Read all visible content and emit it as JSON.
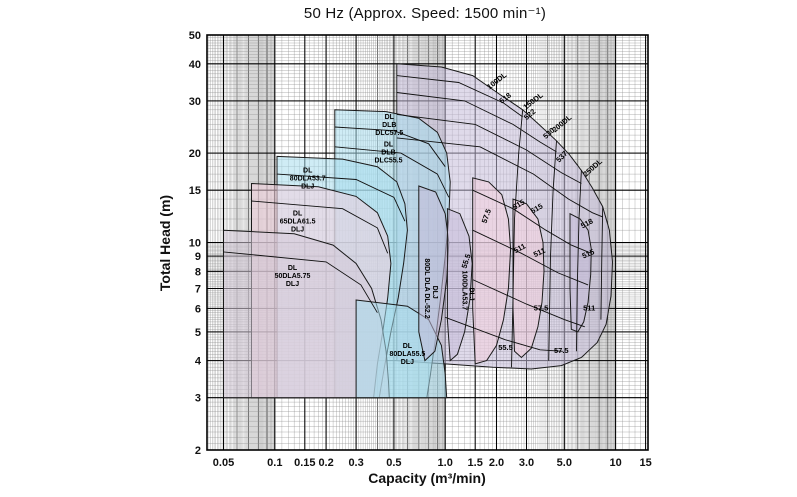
{
  "chart_data": {
    "type": "area",
    "title": "50 Hz (Approx. Speed: 1500 min⁻¹)",
    "xlabel": "Capacity (m³/min)",
    "ylabel": "Total Head (m)",
    "x_scale": "log",
    "y_scale": "log",
    "xlim": [
      0.04,
      15.5
    ],
    "ylim": [
      2,
      50
    ],
    "grid": "log graph paper, minor+major, both axes",
    "x_ticks": [
      {
        "v": 0.05,
        "label": "0.05"
      },
      {
        "v": 0.1,
        "label": "0.1"
      },
      {
        "v": 0.15,
        "label": "0.15"
      },
      {
        "v": 0.2,
        "label": "0.2"
      },
      {
        "v": 0.3,
        "label": "0.3"
      },
      {
        "v": 0.5,
        "label": "0.5"
      },
      {
        "v": 1.0,
        "label": "1.0"
      },
      {
        "v": 1.5,
        "label": "1.5"
      },
      {
        "v": 2.0,
        "label": "2.0"
      },
      {
        "v": 3.0,
        "label": "3.0"
      },
      {
        "v": 5.0,
        "label": "5.0"
      },
      {
        "v": 10,
        "label": "10"
      },
      {
        "v": 15,
        "label": "15"
      }
    ],
    "y_ticks": [
      {
        "v": 2,
        "label": "2"
      },
      {
        "v": 3,
        "label": "3"
      },
      {
        "v": 4,
        "label": "4"
      },
      {
        "v": 5,
        "label": "5"
      },
      {
        "v": 6,
        "label": "6"
      },
      {
        "v": 7,
        "label": "7"
      },
      {
        "v": 8,
        "label": "8"
      },
      {
        "v": 9,
        "label": "9"
      },
      {
        "v": 10,
        "label": "10"
      },
      {
        "v": 15,
        "label": "15"
      },
      {
        "v": 20,
        "label": "20"
      },
      {
        "v": 30,
        "label": "30"
      },
      {
        "v": 40,
        "label": "40"
      },
      {
        "v": 50,
        "label": "50"
      }
    ],
    "colors": {
      "lavender": "#c5bcd8",
      "cyan": "#a8dcec",
      "pink": "#f2cfdc",
      "graylav": "#d6cbd8"
    },
    "models_visible": [
      "100DL",
      "150DL",
      "200DL",
      "250DL",
      "DLC57.5",
      "DLC55.5",
      "80DLA53.7",
      "65DLA61.5",
      "50DLA5.75",
      "80DLA55.5",
      "80DL DLA DL-52.2",
      "100DLA53.7"
    ],
    "regions": [
      {
        "name": "dl-series-large",
        "color": "lavender",
        "points": [
          [
            0.52,
            40
          ],
          [
            0.95,
            39
          ],
          [
            1.45,
            36.5
          ],
          [
            2.1,
            31.5
          ],
          [
            2.85,
            28
          ],
          [
            3.55,
            25
          ],
          [
            4.5,
            22
          ],
          [
            5.35,
            19.8
          ],
          [
            6.3,
            17.5
          ],
          [
            7.3,
            15.3
          ],
          [
            8.4,
            13.2
          ],
          [
            9.2,
            11
          ],
          [
            9.6,
            8.6
          ],
          [
            9.4,
            6.6
          ],
          [
            8.8,
            5.3
          ],
          [
            7.8,
            4.6
          ],
          [
            6.3,
            4.1
          ],
          [
            4.8,
            3.85
          ],
          [
            3.2,
            3.75
          ],
          [
            1.9,
            3.8
          ],
          [
            1.0,
            3.9
          ],
          [
            0.52,
            4.0
          ]
        ]
      },
      {
        "name": "dlc-tall",
        "color": "cyan",
        "points": [
          [
            0.225,
            28
          ],
          [
            0.45,
            27.6
          ],
          [
            0.7,
            26.2
          ],
          [
            0.9,
            23.5
          ],
          [
            1.02,
            20
          ],
          [
            1.07,
            16
          ],
          [
            1.05,
            12
          ],
          [
            1.0,
            9
          ],
          [
            0.94,
            6.5
          ],
          [
            0.88,
            4.8
          ],
          [
            0.82,
            3.6
          ],
          [
            0.78,
            3.0
          ],
          [
            0.225,
            3.0
          ]
        ]
      },
      {
        "name": "dla-80-3-7kw",
        "color": "cyan",
        "points": [
          [
            0.103,
            19.5
          ],
          [
            0.25,
            19.1
          ],
          [
            0.4,
            18
          ],
          [
            0.52,
            16
          ],
          [
            0.58,
            13.5
          ],
          [
            0.6,
            11
          ],
          [
            0.57,
            8.5
          ],
          [
            0.53,
            6.5
          ],
          [
            0.48,
            5.0
          ],
          [
            0.44,
            3.8
          ],
          [
            0.41,
            3.0
          ],
          [
            0.103,
            3.0
          ]
        ]
      },
      {
        "name": "dla-65-1-5kw",
        "color": "pink",
        "points": [
          [
            0.073,
            15.8
          ],
          [
            0.18,
            15.4
          ],
          [
            0.3,
            14.3
          ],
          [
            0.4,
            12.6
          ],
          [
            0.46,
            10.5
          ],
          [
            0.48,
            8.5
          ],
          [
            0.46,
            6.5
          ],
          [
            0.43,
            5.0
          ],
          [
            0.4,
            3.9
          ],
          [
            0.38,
            3.0
          ],
          [
            0.073,
            3.0
          ]
        ]
      },
      {
        "name": "dla-50-0-75kw",
        "color": "graylav",
        "points": [
          [
            0.05,
            11
          ],
          [
            0.13,
            10.7
          ],
          [
            0.22,
            9.8
          ],
          [
            0.3,
            8.5
          ],
          [
            0.37,
            7.0
          ],
          [
            0.42,
            5.5
          ],
          [
            0.45,
            4.3
          ],
          [
            0.465,
            3.4
          ],
          [
            0.47,
            3.0
          ],
          [
            0.05,
            3.0
          ]
        ]
      },
      {
        "name": "dla-80-5-5kw-bottom",
        "color": "cyan",
        "points": [
          [
            0.3,
            6.4
          ],
          [
            0.6,
            6.1
          ],
          [
            0.8,
            5.5
          ],
          [
            0.95,
            4.5
          ],
          [
            1.0,
            3.6
          ],
          [
            1.02,
            3.0
          ],
          [
            0.3,
            3.0
          ]
        ]
      },
      {
        "name": "dl-80-narrow",
        "color": "lavender",
        "points": [
          [
            0.7,
            15.5
          ],
          [
            0.88,
            14.8
          ],
          [
            1.0,
            12.5
          ],
          [
            1.05,
            10
          ],
          [
            1.02,
            7.5
          ],
          [
            0.95,
            5.5
          ],
          [
            0.87,
            4.3
          ],
          [
            0.76,
            4.0
          ],
          [
            0.7,
            5.0
          ]
        ]
      },
      {
        "name": "dla-100-narrow",
        "color": "lavender",
        "points": [
          [
            1.03,
            13
          ],
          [
            1.22,
            12.5
          ],
          [
            1.38,
            10.5
          ],
          [
            1.44,
            8.5
          ],
          [
            1.4,
            6.5
          ],
          [
            1.3,
            5.0
          ],
          [
            1.18,
            4.2
          ],
          [
            1.07,
            4.0
          ],
          [
            1.03,
            5.5
          ]
        ]
      },
      {
        "name": "mid-pink",
        "color": "pink",
        "points": [
          [
            1.45,
            16.5
          ],
          [
            1.8,
            16
          ],
          [
            2.15,
            14.5
          ],
          [
            2.35,
            12
          ],
          [
            2.42,
            9.5
          ],
          [
            2.35,
            7.0
          ],
          [
            2.2,
            5.5
          ],
          [
            2.0,
            4.5
          ],
          [
            1.75,
            4.0
          ],
          [
            1.5,
            3.9
          ],
          [
            1.45,
            6.0
          ]
        ]
      },
      {
        "name": "right-pink",
        "color": "pink",
        "points": [
          [
            2.5,
            14
          ],
          [
            3.0,
            13.5
          ],
          [
            3.5,
            12
          ],
          [
            3.75,
            10
          ],
          [
            3.8,
            8.0
          ],
          [
            3.7,
            6.3
          ],
          [
            3.5,
            5.2
          ],
          [
            3.2,
            4.4
          ],
          [
            2.8,
            4.1
          ],
          [
            2.55,
            4.3
          ],
          [
            2.5,
            6.0
          ]
        ]
      },
      {
        "name": "right-lavender-small",
        "color": "lavender",
        "points": [
          [
            5.4,
            12.5
          ],
          [
            6.2,
            12
          ],
          [
            6.9,
            11
          ],
          [
            7.2,
            9.5
          ],
          [
            7.15,
            7.8
          ],
          [
            6.9,
            6.3
          ],
          [
            6.5,
            5.4
          ],
          [
            6.0,
            5.0
          ],
          [
            5.5,
            5.1
          ],
          [
            5.4,
            7.0
          ]
        ]
      }
    ],
    "curves": [
      {
        "name": "band-1",
        "points": [
          [
            0.52,
            36.5
          ],
          [
            1.2,
            34.6
          ],
          [
            2.2,
            29.5
          ],
          [
            2.85,
            26.5
          ]
        ]
      },
      {
        "name": "band-2",
        "points": [
          [
            0.52,
            32
          ],
          [
            1.3,
            30
          ],
          [
            2.5,
            25
          ],
          [
            3.6,
            21.8
          ],
          [
            4.5,
            20.2
          ]
        ]
      },
      {
        "name": "band-3",
        "points": [
          [
            0.52,
            27
          ],
          [
            1.5,
            25
          ],
          [
            3.0,
            20.5
          ],
          [
            4.8,
            17.2
          ],
          [
            6.3,
            15.8
          ]
        ]
      },
      {
        "name": "band-4",
        "points": [
          [
            0.52,
            22.5
          ],
          [
            1.6,
            21
          ],
          [
            3.3,
            17
          ],
          [
            5.3,
            14
          ],
          [
            7.3,
            12.6
          ],
          [
            8.4,
            12.2
          ]
        ]
      },
      {
        "name": "band-515",
        "points": [
          [
            1.45,
            15
          ],
          [
            2.5,
            13
          ],
          [
            3.9,
            11
          ],
          [
            5.5,
            9.8
          ],
          [
            7.2,
            9.2
          ]
        ]
      },
      {
        "name": "band-511",
        "points": [
          [
            1.45,
            11
          ],
          [
            2.8,
            9.2
          ],
          [
            4.6,
            7.9
          ],
          [
            6.9,
            7.2
          ]
        ]
      },
      {
        "name": "band-57-5",
        "points": [
          [
            1.45,
            7.5
          ],
          [
            3.0,
            6.2
          ],
          [
            5.0,
            5.5
          ],
          [
            6.6,
            5.2
          ]
        ]
      },
      {
        "name": "band-55-5",
        "points": [
          [
            1.0,
            5.6
          ],
          [
            2.26,
            4.7
          ],
          [
            3.6,
            4.35
          ],
          [
            4.9,
            4.3
          ]
        ]
      },
      {
        "name": "divider-100dl",
        "points": [
          [
            2.85,
            28
          ],
          [
            2.7,
            20
          ],
          [
            2.55,
            12
          ],
          [
            2.5,
            6.5
          ],
          [
            2.45,
            3.8
          ]
        ]
      },
      {
        "name": "divider-150dl",
        "points": [
          [
            4.5,
            22
          ],
          [
            4.3,
            15
          ],
          [
            4.15,
            9
          ],
          [
            4.05,
            4.0
          ]
        ]
      },
      {
        "name": "divider-200dl",
        "points": [
          [
            6.3,
            17.5
          ],
          [
            6.1,
            12
          ],
          [
            5.95,
            7
          ],
          [
            5.9,
            4.3
          ]
        ]
      },
      {
        "name": "divider-250dl",
        "points": [
          [
            8.4,
            13.2
          ],
          [
            8.3,
            9
          ],
          [
            8.2,
            5.5
          ]
        ]
      },
      {
        "name": "dlc-inner-1",
        "points": [
          [
            0.225,
            24.5
          ],
          [
            0.5,
            23.8
          ],
          [
            0.8,
            21.5
          ],
          [
            1.0,
            18
          ]
        ]
      },
      {
        "name": "dlc-inner-2",
        "points": [
          [
            0.225,
            21
          ],
          [
            0.55,
            20
          ],
          [
            0.9,
            17
          ],
          [
            1.05,
            14.2
          ]
        ]
      },
      {
        "name": "dla80-inner",
        "points": [
          [
            0.103,
            17
          ],
          [
            0.3,
            16.3
          ],
          [
            0.5,
            14.2
          ],
          [
            0.58,
            11.8
          ]
        ]
      },
      {
        "name": "dla65-inner",
        "points": [
          [
            0.073,
            13.8
          ],
          [
            0.25,
            13
          ],
          [
            0.4,
            11.2
          ],
          [
            0.46,
            9.2
          ]
        ]
      },
      {
        "name": "dla50-inner",
        "points": [
          [
            0.05,
            9.3
          ],
          [
            0.2,
            8.6
          ],
          [
            0.32,
            7.2
          ],
          [
            0.4,
            5.8
          ]
        ]
      }
    ],
    "curve_labels": [
      {
        "t": "100DL",
        "x": 2.05,
        "y": 34.5,
        "rot": -38
      },
      {
        "t": "150DL",
        "x": 3.35,
        "y": 29.5,
        "rot": -38
      },
      {
        "t": "200DL",
        "x": 4.95,
        "y": 24.8,
        "rot": -40
      },
      {
        "t": "250DL",
        "x": 7.5,
        "y": 17.6,
        "rot": -42
      },
      {
        "t": "518",
        "x": 2.3,
        "y": 30.2,
        "rot": -38
      },
      {
        "t": "522",
        "x": 3.2,
        "y": 26.6,
        "rot": -40
      },
      {
        "t": "530",
        "x": 4.15,
        "y": 23.0,
        "rot": -42
      },
      {
        "t": "537",
        "x": 4.95,
        "y": 19.2,
        "rot": -45
      },
      {
        "t": "57.5",
        "x": 1.8,
        "y": 12.2,
        "rot": -70
      },
      {
        "t": "55.5",
        "x": 1.37,
        "y": 8.6,
        "rot": -72
      },
      {
        "t": "515",
        "x": 2.75,
        "y": 13.2,
        "rot": -32
      },
      {
        "t": "511",
        "x": 2.78,
        "y": 9.4,
        "rot": -28
      },
      {
        "t": "515",
        "x": 3.5,
        "y": 12.8,
        "rot": -30
      },
      {
        "t": "511",
        "x": 3.62,
        "y": 9.1,
        "rot": -25
      },
      {
        "t": "57.5",
        "x": 3.65,
        "y": 5.9,
        "rot": 0
      },
      {
        "t": "55.5",
        "x": 2.26,
        "y": 4.35,
        "rot": 0
      },
      {
        "t": "518",
        "x": 6.9,
        "y": 11.4,
        "rot": -28
      },
      {
        "t": "515",
        "x": 7.0,
        "y": 9.0,
        "rot": -24
      },
      {
        "t": "511",
        "x": 7.0,
        "y": 5.9,
        "rot": 0
      },
      {
        "t": "57.5",
        "x": 4.8,
        "y": 4.25,
        "rot": 0
      }
    ],
    "model_labels": [
      {
        "lines": [
          "DL",
          "DLB",
          "DLC57.5"
        ],
        "x": 0.47,
        "y": 24.5,
        "rot": 0
      },
      {
        "lines": [
          "DL",
          "DLB",
          "DLC55.5"
        ],
        "x": 0.465,
        "y": 19.8,
        "rot": 0
      },
      {
        "lines": [
          "DL",
          "80DLA53.7",
          "DLJ"
        ],
        "x": 0.156,
        "y": 16.2,
        "rot": 0
      },
      {
        "lines": [
          "DL",
          "65DLA61.5",
          "DLJ"
        ],
        "x": 0.136,
        "y": 11.6,
        "rot": 0
      },
      {
        "lines": [
          "DL",
          "50DLA5.75",
          "DLJ"
        ],
        "x": 0.127,
        "y": 7.6,
        "rot": 0
      },
      {
        "lines": [
          "DL",
          "80DLA55.5",
          "DLJ"
        ],
        "x": 0.6,
        "y": 4.15,
        "rot": 0
      },
      {
        "lines": [
          "80DL DLA DL-52.2"
        ],
        "x": 0.76,
        "y": 7.0,
        "rot": 90
      },
      {
        "lines": [
          "DLJ"
        ],
        "x": 0.85,
        "y": 6.8,
        "rot": 90
      },
      {
        "lines": [
          "100DLA53.7"
        ],
        "x": 1.26,
        "y": 6.9,
        "rot": 90
      },
      {
        "lines": [
          "DLJ"
        ],
        "x": 1.39,
        "y": 6.7,
        "rot": 90
      }
    ]
  }
}
